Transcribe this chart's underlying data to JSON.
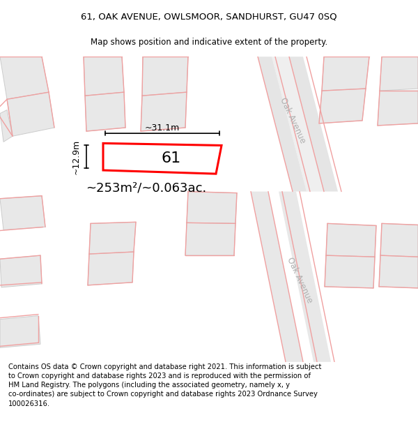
{
  "title_line1": "61, OAK AVENUE, OWLSMOOR, SANDHURST, GU47 0SQ",
  "title_line2": "Map shows position and indicative extent of the property.",
  "footer_text": "Contains OS data © Crown copyright and database right 2021. This information is subject to Crown copyright and database rights 2023 and is reproduced with the permission of HM Land Registry. The polygons (including the associated geometry, namely x, y co-ordinates) are subject to Crown copyright and database rights 2023 Ordnance Survey 100026316.",
  "area_label": "~253m²/~0.063ac.",
  "number_label": "61",
  "width_label": "~31.1m",
  "height_label": "~12.9m",
  "highlight_color": "#ff0000",
  "highlight_fill": "#ffffff",
  "road_line_color": "#f0a0a0",
  "building_fc": "#e8e8e8",
  "building_ec": "#cccccc",
  "map_bg": "#f2f2f2",
  "oak_avenue_label": "Oak Avenue",
  "title_fontsize": 9.5,
  "subtitle_fontsize": 8.5,
  "footer_fontsize": 7.2,
  "area_fontsize": 13,
  "number_fontsize": 16,
  "meas_fontsize": 9
}
